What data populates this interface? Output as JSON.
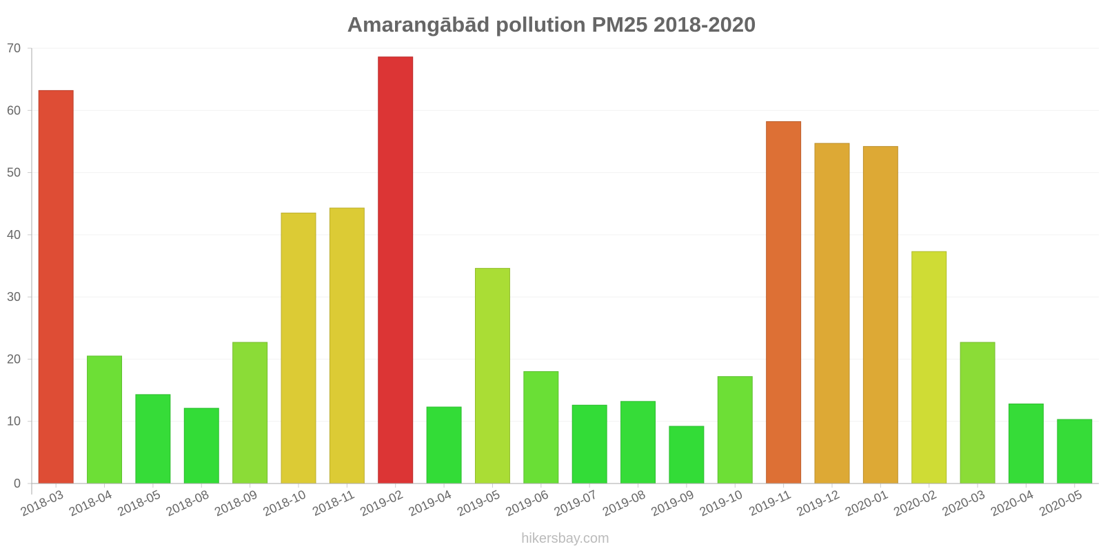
{
  "chart_data": {
    "type": "bar",
    "title": "Amarangābād pollution PM25 2018-2020",
    "xlabel": "",
    "ylabel": "",
    "ylim": [
      0,
      70
    ],
    "yticks": [
      0,
      10,
      20,
      30,
      40,
      50,
      60,
      70
    ],
    "grid": true,
    "categories": [
      "2018-03",
      "2018-04",
      "2018-05",
      "2018-08",
      "2018-09",
      "2018-10",
      "2018-11",
      "2019-02",
      "2019-04",
      "2019-05",
      "2019-06",
      "2019-07",
      "2019-08",
      "2019-09",
      "2019-10",
      "2019-11",
      "2019-12",
      "2020-01",
      "2020-02",
      "2020-03",
      "2020-04",
      "2020-05"
    ],
    "values": [
      63.2,
      20.5,
      14.3,
      12.1,
      22.7,
      43.5,
      44.3,
      68.6,
      12.3,
      34.6,
      18.0,
      12.6,
      13.2,
      9.2,
      17.2,
      58.2,
      54.7,
      54.2,
      37.3,
      22.7,
      12.8,
      10.3
    ],
    "colors": [
      "#de4d35",
      "#6ddf36",
      "#36dc38",
      "#33dc37",
      "#8bdc37",
      "#dccb35",
      "#dccb35",
      "#dc3535",
      "#33dc37",
      "#aadd35",
      "#6adf36",
      "#33dc37",
      "#36dc38",
      "#33dc37",
      "#6ddf36",
      "#dd7035",
      "#dda935",
      "#dda935",
      "#cfdc35",
      "#8bdc37",
      "#36dc38",
      "#36dc38"
    ]
  },
  "credit": "hikersbay.com"
}
